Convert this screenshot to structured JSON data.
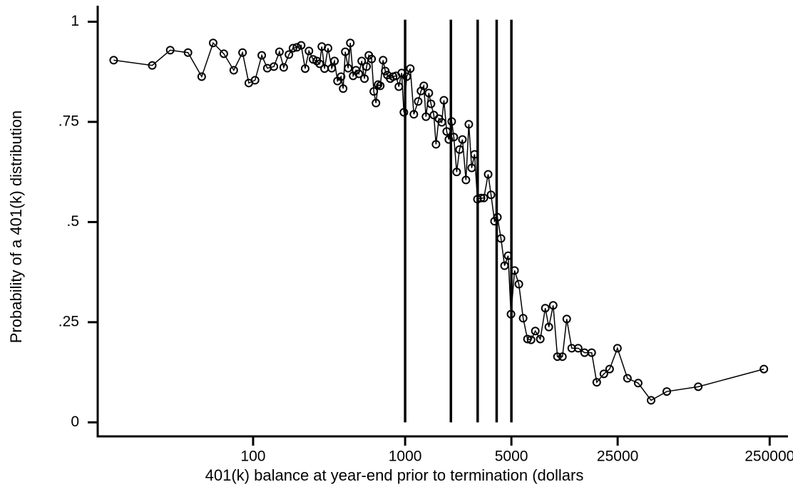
{
  "chart_data": {
    "type": "line",
    "xlabel": "401(k) balance at year-end prior to termination (dollars",
    "ylabel": "Probability of a 401(k) distribution",
    "xscale": "log",
    "xlim": [
      9.5,
      330000
    ],
    "ylim": [
      -0.035,
      1.04
    ],
    "xticks": [
      100,
      1000,
      5000,
      25000,
      250000
    ],
    "yticks": [
      0,
      {
        "value": 0.25,
        "label": ".25"
      },
      {
        "value": 0.5,
        "label": ".5"
      },
      {
        "value": 0.75,
        "label": ".75"
      },
      1
    ],
    "vlines": [
      1000,
      2000,
      3000,
      4000,
      5000
    ],
    "color": "#000000",
    "x": [
      12.1,
      21.7,
      28.5,
      37.3,
      45.9,
      54.6,
      64.2,
      74.6,
      85.2,
      93.7,
      103,
      114,
      124,
      137,
      149,
      159,
      172,
      183,
      194,
      207,
      220,
      233,
      248,
      262,
      274,
      283,
      295,
      311,
      329,
      343,
      359,
      379,
      391,
      404,
      422,
      436,
      455,
      475,
      496,
      518,
      540,
      558,
      577,
      602,
      622,
      643,
      664,
      686,
      716,
      740,
      764,
      798,
      834,
      871,
      909,
      949,
      981,
      1024,
      1081,
      1141,
      1218,
      1271,
      1327,
      1371,
      1432,
      1479,
      1545,
      1596,
      1667,
      1741,
      1799,
      1877,
      1939,
      2025,
      2091,
      2183,
      2280,
      2382,
      2512,
      2624,
      2740,
      2862,
      2989,
      3156,
      3296,
      3516,
      3673,
      3873,
      4046,
      4271,
      4508,
      4761,
      4970,
      5245,
      5598,
      5975,
      6379,
      6736,
      7184,
      7745,
      8356,
      8816,
      9415,
      10040,
      10830,
      11560,
      12470,
      13750,
      15150,
      16870,
      18210,
      20290,
      22130,
      24920,
      28990,
      34120,
      41480,
      52620,
      84740,
      229000
    ],
    "values": [
      0.904,
      0.891,
      0.929,
      0.923,
      0.863,
      0.947,
      0.92,
      0.879,
      0.923,
      0.847,
      0.854,
      0.916,
      0.884,
      0.888,
      0.925,
      0.886,
      0.918,
      0.934,
      0.936,
      0.941,
      0.883,
      0.927,
      0.906,
      0.902,
      0.895,
      0.938,
      0.883,
      0.934,
      0.884,
      0.902,
      0.852,
      0.863,
      0.833,
      0.925,
      0.884,
      0.947,
      0.865,
      0.879,
      0.87,
      0.902,
      0.858,
      0.888,
      0.916,
      0.907,
      0.826,
      0.797,
      0.843,
      0.84,
      0.904,
      0.877,
      0.867,
      0.858,
      0.863,
      0.865,
      0.838,
      0.872,
      0.774,
      0.863,
      0.883,
      0.769,
      0.801,
      0.827,
      0.84,
      0.763,
      0.822,
      0.795,
      0.767,
      0.694,
      0.758,
      0.749,
      0.804,
      0.726,
      0.706,
      0.751,
      0.712,
      0.625,
      0.681,
      0.706,
      0.605,
      0.744,
      0.635,
      0.669,
      0.557,
      0.56,
      0.56,
      0.619,
      0.568,
      0.502,
      0.512,
      0.459,
      0.391,
      0.416,
      0.27,
      0.379,
      0.345,
      0.26,
      0.208,
      0.206,
      0.228,
      0.208,
      0.285,
      0.238,
      0.292,
      0.164,
      0.164,
      0.258,
      0.185,
      0.185,
      0.174,
      0.174,
      0.1,
      0.121,
      0.133,
      0.185,
      0.11,
      0.098,
      0.055,
      0.077,
      0.089,
      0.133
    ]
  }
}
